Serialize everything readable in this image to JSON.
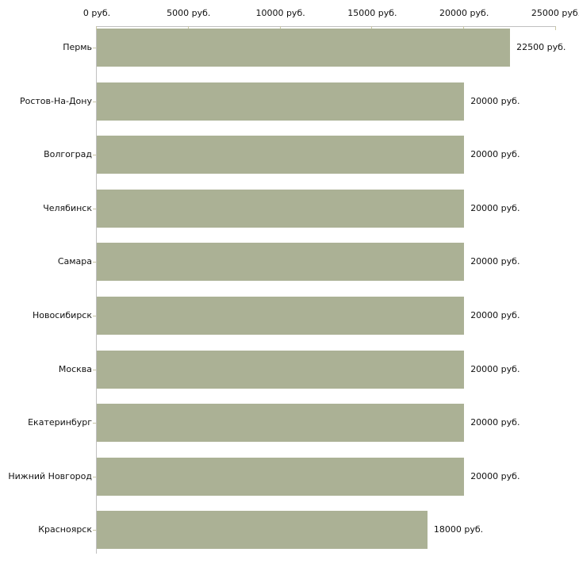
{
  "chart_data": {
    "type": "bar",
    "orientation": "horizontal",
    "title": "",
    "xlabel": "",
    "ylabel": "",
    "xlim": [
      0,
      25000
    ],
    "grid": false,
    "legend": false,
    "axis_position": "top",
    "categories": [
      "Пермь",
      "Ростов-На-Дону",
      "Волгоград",
      "Челябинск",
      "Самара",
      "Новосибирск",
      "Москва",
      "Екатеринбург",
      "Нижний Новгород",
      "Красноярск"
    ],
    "values": [
      22500,
      20000,
      20000,
      20000,
      20000,
      20000,
      20000,
      20000,
      20000,
      18000
    ],
    "value_labels": [
      "22500 руб.",
      "20000 руб.",
      "20000 руб.",
      "20000 руб.",
      "20000 руб.",
      "20000 руб.",
      "20000 руб.",
      "20000 руб.",
      "20000 руб.",
      "18000 руб."
    ],
    "x_ticks": [
      {
        "value": 0,
        "label": "0 руб."
      },
      {
        "value": 5000,
        "label": "5000 руб."
      },
      {
        "value": 10000,
        "label": "10000 руб."
      },
      {
        "value": 15000,
        "label": "15000 руб."
      },
      {
        "value": 20000,
        "label": "20000 руб."
      },
      {
        "value": 25000,
        "label": "25000 руб."
      }
    ],
    "colors": {
      "bar": "#abb195",
      "axis_line": "#c0c0c0",
      "tick_mark": "#c9c6a5",
      "text": "#111111",
      "background": "#ffffff"
    }
  }
}
